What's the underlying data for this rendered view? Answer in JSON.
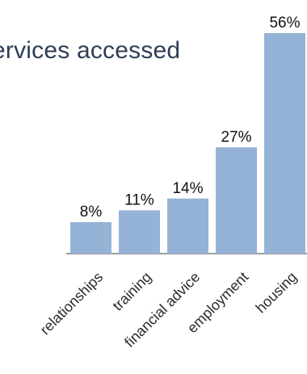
{
  "chart_data": {
    "type": "bar",
    "title": "ervices accessed",
    "categories": [
      "relationships",
      "training",
      "financial advice",
      "employment",
      "housing"
    ],
    "values": [
      8,
      11,
      14,
      27,
      56
    ],
    "value_labels": [
      "8%",
      "11%",
      "14%",
      "27%",
      "56%"
    ],
    "ylim": [
      0,
      56
    ],
    "grid": false,
    "colors": {
      "bar": "#95b3d7",
      "axis": "#7f7f7f",
      "title": "#2f3d57"
    }
  }
}
